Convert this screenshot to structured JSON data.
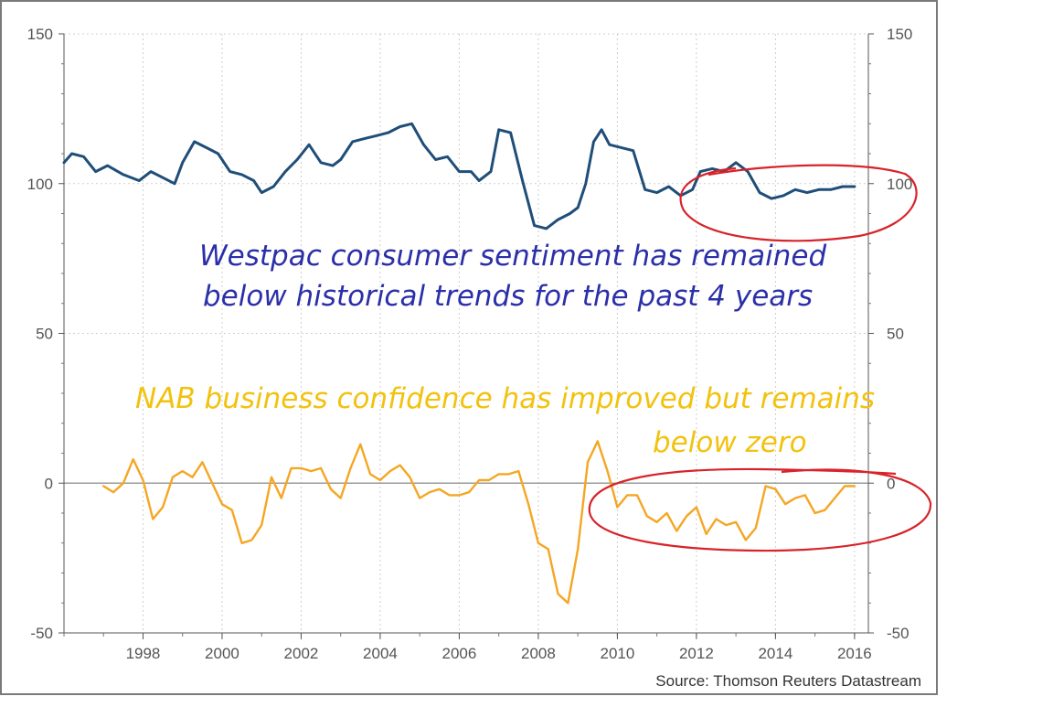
{
  "chart_data": {
    "type": "line",
    "x_range": [
      1996.0,
      2016.35
    ],
    "ylim": [
      -50,
      150
    ],
    "y_ticks": [
      150,
      100,
      50,
      0,
      -50
    ],
    "x_ticks": [
      1998,
      2000,
      2002,
      2004,
      2006,
      2008,
      2010,
      2012,
      2014,
      2016
    ],
    "grid": true,
    "series": [
      {
        "color": "#1f4e79",
        "x": [
          1996.0,
          1996.2,
          1996.5,
          1996.8,
          1997.1,
          1997.5,
          1997.9,
          1998.2,
          1998.5,
          1998.8,
          1999.0,
          1999.3,
          1999.6,
          1999.9,
          2000.2,
          2000.5,
          2000.8,
          2001.0,
          2001.3,
          2001.6,
          2001.9,
          2002.2,
          2002.5,
          2002.8,
          2003.0,
          2003.3,
          2003.6,
          2003.9,
          2004.2,
          2004.5,
          2004.8,
          2005.1,
          2005.4,
          2005.7,
          2006.0,
          2006.3,
          2006.5,
          2006.8,
          2007.0,
          2007.3,
          2007.6,
          2007.9,
          2008.2,
          2008.5,
          2008.8,
          2009.0,
          2009.2,
          2009.4,
          2009.6,
          2009.8,
          2010.1,
          2010.4,
          2010.7,
          2011.0,
          2011.3,
          2011.6,
          2011.9,
          2012.1,
          2012.4,
          2012.7,
          2013.0,
          2013.3,
          2013.6,
          2013.9,
          2014.2,
          2014.5,
          2014.8,
          2015.1,
          2015.4,
          2015.7,
          2016.0
        ],
        "values": [
          107,
          110,
          109,
          104,
          106,
          103,
          101,
          104,
          102,
          100,
          107,
          114,
          112,
          110,
          104,
          103,
          101,
          97,
          99,
          104,
          108,
          113,
          107,
          106,
          108,
          114,
          115,
          116,
          117,
          119,
          120,
          113,
          108,
          109,
          104,
          104,
          101,
          104,
          118,
          117,
          101,
          86,
          85,
          88,
          90,
          92,
          100,
          114,
          118,
          113,
          112,
          111,
          98,
          97,
          99,
          96,
          98,
          104,
          105,
          104,
          107,
          104,
          97,
          95,
          96,
          98,
          97,
          98,
          98,
          99,
          99
        ]
      },
      {
        "color": "#f5a623",
        "x": [
          1997.0,
          1997.25,
          1997.5,
          1997.75,
          1998.0,
          1998.25,
          1998.5,
          1998.75,
          1999.0,
          1999.25,
          1999.5,
          1999.75,
          2000.0,
          2000.25,
          2000.5,
          2000.75,
          2001.0,
          2001.25,
          2001.5,
          2001.75,
          2002.0,
          2002.25,
          2002.5,
          2002.75,
          2003.0,
          2003.25,
          2003.5,
          2003.75,
          2004.0,
          2004.25,
          2004.5,
          2004.75,
          2005.0,
          2005.25,
          2005.5,
          2005.75,
          2006.0,
          2006.25,
          2006.5,
          2006.75,
          2007.0,
          2007.25,
          2007.5,
          2007.75,
          2008.0,
          2008.25,
          2008.5,
          2008.75,
          2009.0,
          2009.25,
          2009.5,
          2009.75,
          2010.0,
          2010.25,
          2010.5,
          2010.75,
          2011.0,
          2011.25,
          2011.5,
          2011.75,
          2012.0,
          2012.25,
          2012.5,
          2012.75,
          2013.0,
          2013.25,
          2013.5,
          2013.75,
          2014.0,
          2014.25,
          2014.5,
          2014.75,
          2015.0,
          2015.25,
          2015.5,
          2015.75,
          2016.0
        ],
        "values": [
          -1,
          -3,
          0,
          8,
          1,
          -12,
          -8,
          2,
          4,
          2,
          7,
          0,
          -7,
          -9,
          -20,
          -19,
          -14,
          2,
          -5,
          5,
          5,
          4,
          5,
          -2,
          -5,
          5,
          13,
          3,
          1,
          4,
          6,
          2,
          -5,
          -3,
          -2,
          -4,
          -4,
          -3,
          1,
          1,
          3,
          3,
          4,
          -7,
          -20,
          -22,
          -37,
          -40,
          -22,
          7,
          14,
          4,
          -8,
          -4,
          -4,
          -11,
          -13,
          -10,
          -16,
          -11,
          -8,
          -17,
          -12,
          -14,
          -13,
          -19,
          -15,
          -1,
          -2,
          -7,
          -5,
          -4,
          -10,
          -9,
          -5,
          -1,
          -1
        ]
      }
    ],
    "source": "Source: Thomson Reuters Datastream"
  },
  "annotations": {
    "westpac_line1": "Westpac consumer sentiment has remained",
    "westpac_line2": "below historical trends for the past 4 years",
    "nab_line1": "NAB business confidence has improved but remains",
    "nab_line2": "below zero",
    "westpac_color": "#2b2fa8",
    "nab_color": "#f2c20f",
    "circle_color": "#d8232a"
  }
}
